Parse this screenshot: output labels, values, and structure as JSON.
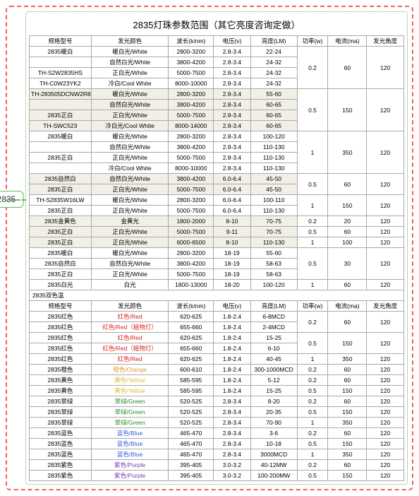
{
  "badge": "2835",
  "title": "2835灯珠参数范围（其它亮度咨询定做）",
  "headers": [
    "规格型号",
    "发光颜色",
    "波长(k/nm)",
    "电压(v)",
    "亮度(LM)",
    "功率(w)",
    "电流(ma)",
    "发光角度"
  ],
  "section1": {
    "rows": [
      {
        "model": "2835暖白",
        "color": "暖白光/White",
        "wl": "2800-3200",
        "v": "2.8-3.4",
        "lm": "22-24",
        "shade": false
      },
      {
        "model": "",
        "color": "自然白光/White",
        "wl": "3800-4200",
        "v": "2.8-3.4",
        "lm": "24-32",
        "shade": false
      },
      {
        "model": "TH-S2W2835HS",
        "color": "正白光/White",
        "wl": "5000-7500",
        "v": "2.8-3.4",
        "lm": "24-32",
        "shade": false
      },
      {
        "model": "TH-C0W23YK2",
        "color": "冷白/Cool White",
        "wl": "8000-10000",
        "v": "2.8-3.4",
        "lm": "24-32",
        "shade": false
      },
      {
        "model": "TH-283505DCNW2R8",
        "color": "暖白光/White",
        "wl": "2800-3200",
        "v": "2.8-3.4",
        "lm": "55-60",
        "shade": true
      },
      {
        "model": "",
        "color": "自然白光/White",
        "wl": "3800-4200",
        "v": "2.8-3.4",
        "lm": "60-65",
        "shade": true
      },
      {
        "model": "2835正白",
        "color": "正白光/White",
        "wl": "5000-7500",
        "v": "2.8-3.4",
        "lm": "60-65",
        "shade": true
      },
      {
        "model": "TH-SWC523",
        "color": "冷白光/Cool White",
        "wl": "8000-14000",
        "v": "2.8-3.4",
        "lm": "60-65",
        "shade": true
      },
      {
        "model": "2835暖白",
        "color": "暖白光/White",
        "wl": "2800-3200",
        "v": "2.8-3.4",
        "lm": "100-120",
        "shade": false
      },
      {
        "model": "",
        "color": "自然白光/White",
        "wl": "3800-4200",
        "v": "2.8-3.4",
        "lm": "110-130",
        "shade": false
      },
      {
        "model": "2835正白",
        "color": "正白光/White",
        "wl": "5000-7500",
        "v": "2.8-3.4",
        "lm": "110-130",
        "shade": false
      },
      {
        "model": "",
        "color": "冷白/Cool White",
        "wl": "8000-10000",
        "v": "2.8-3.4",
        "lm": "110-130",
        "shade": false
      },
      {
        "model": "2835自然白",
        "color": "自然白光/White",
        "wl": "3800-4200",
        "v": "6.0-6.4",
        "lm": "45-50",
        "shade": true
      },
      {
        "model": "2835正白",
        "color": "正白光/White",
        "wl": "5000-7500",
        "v": "6.0-6.4",
        "lm": "45-50",
        "shade": true
      },
      {
        "model": "TH-S2835W16LW",
        "color": "暖白光/White",
        "wl": "2800-3200",
        "v": "6.0-6.4",
        "lm": "100-110",
        "shade": false
      },
      {
        "model": "2835正白",
        "color": "正白光/White",
        "wl": "5000-7500",
        "v": "6.0-6.4",
        "lm": "110-130",
        "shade": false
      },
      {
        "model": "2835金黄色",
        "color": "金黄光",
        "wl": "1800-2000",
        "v": "8-10",
        "lm": "70-75",
        "shade": true
      },
      {
        "model": "2835正白",
        "color": "正白光/White",
        "wl": "5000-7500",
        "v": "9-11",
        "lm": "70-75",
        "shade": true
      },
      {
        "model": "2835正白",
        "color": "正白光/White",
        "wl": "6000-6500",
        "v": "8-10",
        "lm": "110-130",
        "shade": true
      },
      {
        "model": "2835暖白",
        "color": "暖白光/White",
        "wl": "2800-3200",
        "v": "18-19",
        "lm": "55-60",
        "shade": false
      },
      {
        "model": "2835自然白",
        "color": "自然白光/White",
        "wl": "3800-4200",
        "v": "18-19",
        "lm": "58-63",
        "shade": false
      },
      {
        "model": "2835正白",
        "color": "正白光/White",
        "wl": "5000-7500",
        "v": "18-19",
        "lm": "58-63",
        "shade": false
      },
      {
        "model": "2835白光",
        "color": "白光",
        "wl": "1800-13000",
        "v": "18-20",
        "lm": "100-120",
        "shade": false
      }
    ],
    "pwrGroups": [
      {
        "pw": "0.2",
        "ma": "60",
        "ang": "120",
        "span": 4
      },
      {
        "pw": "0.5",
        "ma": "150",
        "ang": "120",
        "span": 4
      },
      {
        "pw": "1",
        "ma": "350",
        "ang": "120",
        "span": 4
      },
      {
        "pw": "0.5",
        "ma": "60",
        "ang": "120",
        "span": 2
      },
      {
        "pw": "1",
        "ma": "150",
        "ang": "120",
        "span": 2
      },
      {
        "pw": "0.2",
        "ma": "20",
        "ang": "120",
        "span": 1
      },
      {
        "pw": "0.5",
        "ma": "60",
        "ang": "120",
        "span": 1
      },
      {
        "pw": "1",
        "ma": "100",
        "ang": "120",
        "span": 1
      },
      {
        "pw": "0.5",
        "ma": "30",
        "ang": "120",
        "span": 3
      },
      {
        "pw": "1",
        "ma": "60",
        "ang": "120",
        "span": 1
      }
    ]
  },
  "sectionBreak": "2835双色温",
  "section2": {
    "rows": [
      {
        "model": "2835红色",
        "color": "红色/Red",
        "cls": "c-red",
        "wl": "620-625",
        "v": "1.8-2.4",
        "lm": "6-8MCD"
      },
      {
        "model": "2835红色",
        "color": "红色/Red（植物灯）",
        "cls": "c-red",
        "wl": "655-660",
        "v": "1.8-2.4",
        "lm": "2-4MCD"
      },
      {
        "model": "2835红色",
        "color": "红色/Red",
        "cls": "c-red",
        "wl": "620-625",
        "v": "1.8-2.4",
        "lm": "15-25"
      },
      {
        "model": "2835红色",
        "color": "红色/Red（植物灯）",
        "cls": "c-red",
        "wl": "655-660",
        "v": "1.8-2.4",
        "lm": "6-10"
      },
      {
        "model": "2835红色",
        "color": "红色/Red",
        "cls": "c-red",
        "wl": "620-625",
        "v": "1.8-2.4",
        "lm": "40-45"
      },
      {
        "model": "2835橙色",
        "color": "橙色/Orange",
        "cls": "c-orange",
        "wl": "600-610",
        "v": "1.8-2.4",
        "lm": "300-1000MCD"
      },
      {
        "model": "2835黄色",
        "color": "黄色/Yellow",
        "cls": "c-yellow",
        "wl": "585-595",
        "v": "1.8-2.4",
        "lm": "5-12"
      },
      {
        "model": "2835黄色",
        "color": "黄色/Yellow",
        "cls": "c-yellow",
        "wl": "585-595",
        "v": "1.8-2.4",
        "lm": "15-25"
      },
      {
        "model": "2835翠绿",
        "color": "翠绿/Green",
        "cls": "c-green",
        "wl": "520-525",
        "v": "2.8-3.4",
        "lm": "8-20"
      },
      {
        "model": "2835翠绿",
        "color": "翠绿/Green",
        "cls": "c-green",
        "wl": "520-525",
        "v": "2.8-3.4",
        "lm": "20-35"
      },
      {
        "model": "2835翠绿",
        "color": "翠绿/Green",
        "cls": "c-green",
        "wl": "520-525",
        "v": "2.8-3.4",
        "lm": "70-90"
      },
      {
        "model": "2835蓝色",
        "color": "蓝色/Blue",
        "cls": "c-blue",
        "wl": "465-470",
        "v": "2.8-3.4",
        "lm": "3-6"
      },
      {
        "model": "2835蓝色",
        "color": "蓝色/Blue",
        "cls": "c-blue",
        "wl": "465-470",
        "v": "2.8-3.4",
        "lm": "10-18"
      },
      {
        "model": "2835蓝色",
        "color": "蓝色/Blue",
        "cls": "c-blue",
        "wl": "465-470",
        "v": "2.8-3.4",
        "lm": "3000MCD"
      },
      {
        "model": "2835紫色",
        "color": "紫色/Purple",
        "cls": "c-purple",
        "wl": "395-405",
        "v": "3.0-3.2",
        "lm": "40-12MW"
      },
      {
        "model": "2835紫色",
        "color": "紫色/Purple",
        "cls": "c-purple",
        "wl": "395-405",
        "v": "3.0-3.2",
        "lm": "100-200MW"
      }
    ],
    "pwrGroups": [
      {
        "pw": "0.2",
        "ma": "60",
        "ang": "120",
        "span": 2
      },
      {
        "pw": "0.5",
        "ma": "150",
        "ang": "120",
        "span": 2
      },
      {
        "pw": "1",
        "ma": "350",
        "ang": "120",
        "span": 1
      },
      {
        "pw": "0.2",
        "ma": "60",
        "ang": "120",
        "span": 1
      },
      {
        "pw": "0.2",
        "ma": "60",
        "ang": "120",
        "span": 1
      },
      {
        "pw": "0.5",
        "ma": "150",
        "ang": "120",
        "span": 1
      },
      {
        "pw": "0.2",
        "ma": "60",
        "ang": "120",
        "span": 1
      },
      {
        "pw": "0.5",
        "ma": "150",
        "ang": "120",
        "span": 1
      },
      {
        "pw": "1",
        "ma": "350",
        "ang": "120",
        "span": 1
      },
      {
        "pw": "0.2",
        "ma": "60",
        "ang": "120",
        "span": 1
      },
      {
        "pw": "0.5",
        "ma": "150",
        "ang": "120",
        "span": 1
      },
      {
        "pw": "1",
        "ma": "350",
        "ang": "120",
        "span": 1
      },
      {
        "pw": "0.2",
        "ma": "60",
        "ang": "120",
        "span": 1
      },
      {
        "pw": "0.5",
        "ma": "150",
        "ang": "120",
        "span": 1
      }
    ]
  }
}
